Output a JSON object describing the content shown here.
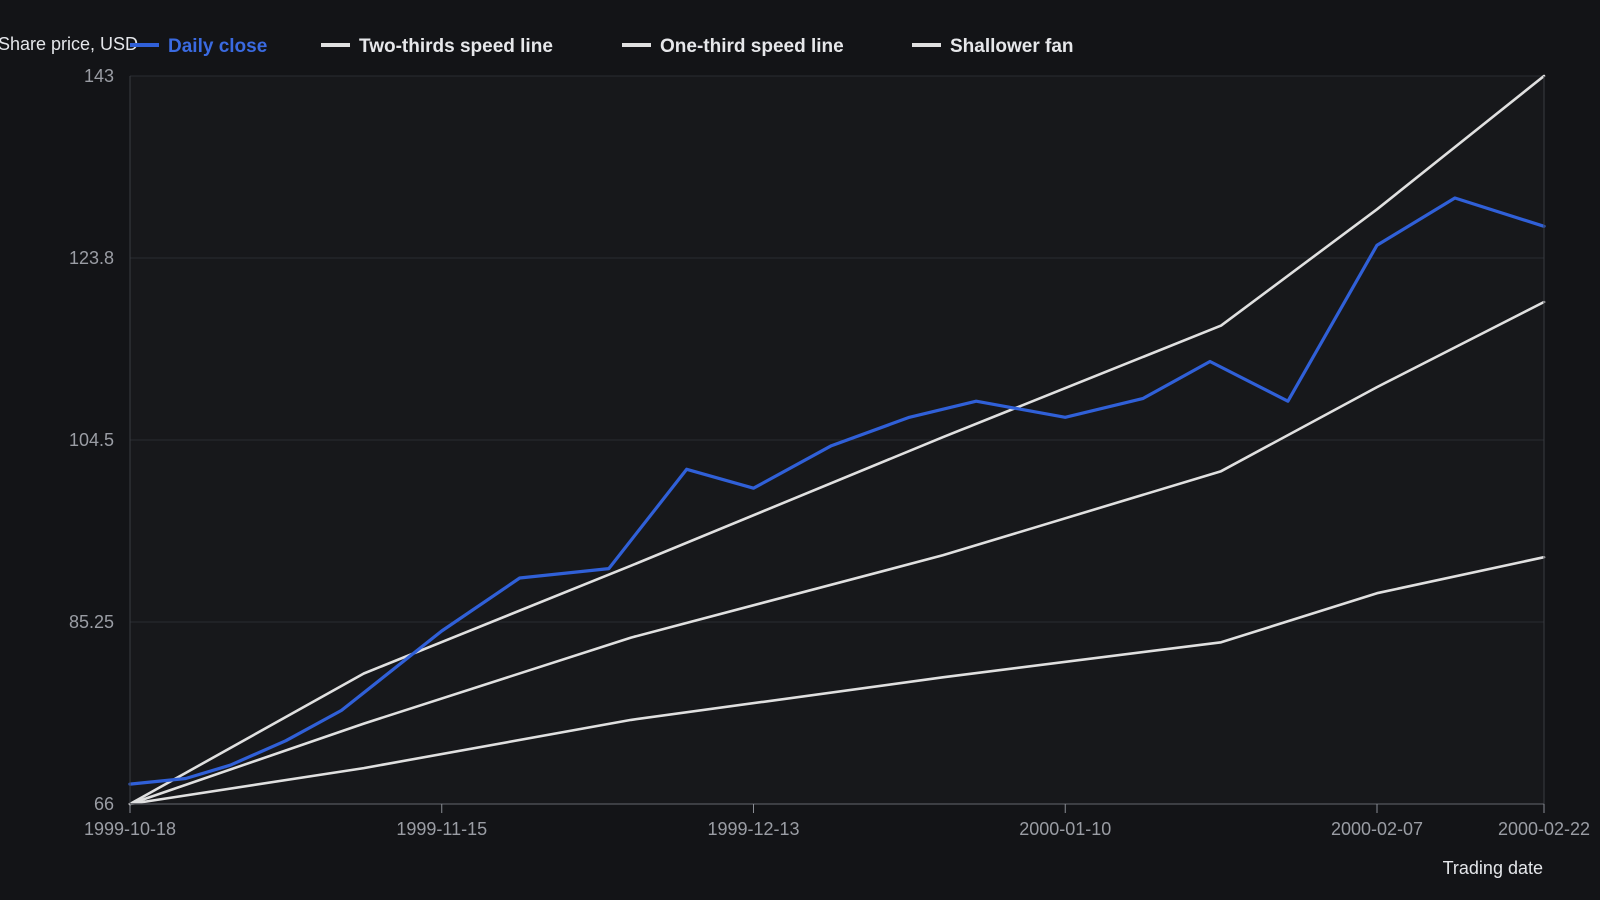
{
  "chart_data": {
    "type": "line",
    "ylabel": "Share price, USD",
    "xlabel": "Trading date",
    "ylim": [
      66,
      143
    ],
    "yticks": [
      "143",
      "123.8",
      "104.5",
      "85.25",
      "66"
    ],
    "ytick_values": [
      143,
      123.75,
      104.5,
      85.25,
      66
    ],
    "xlim": [
      "1999-10-18",
      "2000-02-22"
    ],
    "xticks": [
      "1999-10-18",
      "1999-11-15",
      "1999-12-13",
      "2000-01-10",
      "2000-02-07",
      "2000-02-22"
    ],
    "grid": true,
    "legend_position": "top",
    "series": [
      {
        "name": "Daily close",
        "color": "#3060d8",
        "x": [
          "1999-10-18",
          "1999-10-23",
          "1999-10-27",
          "1999-11-01",
          "1999-11-06",
          "1999-11-15",
          "1999-11-22",
          "1999-11-30",
          "1999-12-07",
          "1999-12-13",
          "1999-12-20",
          "1999-12-27",
          "2000-01-02",
          "2000-01-10",
          "2000-01-17",
          "2000-01-23",
          "2000-01-30",
          "2000-02-07",
          "2000-02-14",
          "2000-02-22"
        ],
        "values": [
          68.1,
          68.7,
          70.1,
          72.7,
          75.9,
          84.3,
          89.9,
          90.9,
          101.4,
          99.4,
          103.9,
          106.9,
          108.6,
          106.9,
          108.9,
          112.8,
          108.6,
          125.1,
          130.1,
          127.1
        ]
      },
      {
        "name": "Two-thirds speed line",
        "color": "#e0e0e0",
        "x": [
          "1999-10-18",
          "1999-11-08",
          "1999-12-02",
          "1999-12-30",
          "2000-01-24",
          "2000-02-07",
          "2000-02-22"
        ],
        "values": [
          66,
          79.8,
          91.2,
          104.8,
          116.6,
          128.9,
          143
        ]
      },
      {
        "name": "One-third speed line",
        "color": "#e0e0e0",
        "x": [
          "1999-10-18",
          "1999-11-08",
          "1999-12-02",
          "1999-12-30",
          "2000-01-24",
          "2000-02-07",
          "2000-02-22"
        ],
        "values": [
          66,
          74.5,
          83.6,
          92.3,
          101.2,
          110.1,
          119.1
        ]
      },
      {
        "name": "Shallower fan",
        "color": "#e0e0e0",
        "x": [
          "1999-10-18",
          "1999-11-08",
          "1999-12-02",
          "1999-12-30",
          "2000-01-24",
          "2000-02-07",
          "2000-02-22"
        ],
        "values": [
          66,
          69.8,
          74.9,
          79.4,
          83.1,
          88.3,
          92.1
        ]
      }
    ]
  }
}
